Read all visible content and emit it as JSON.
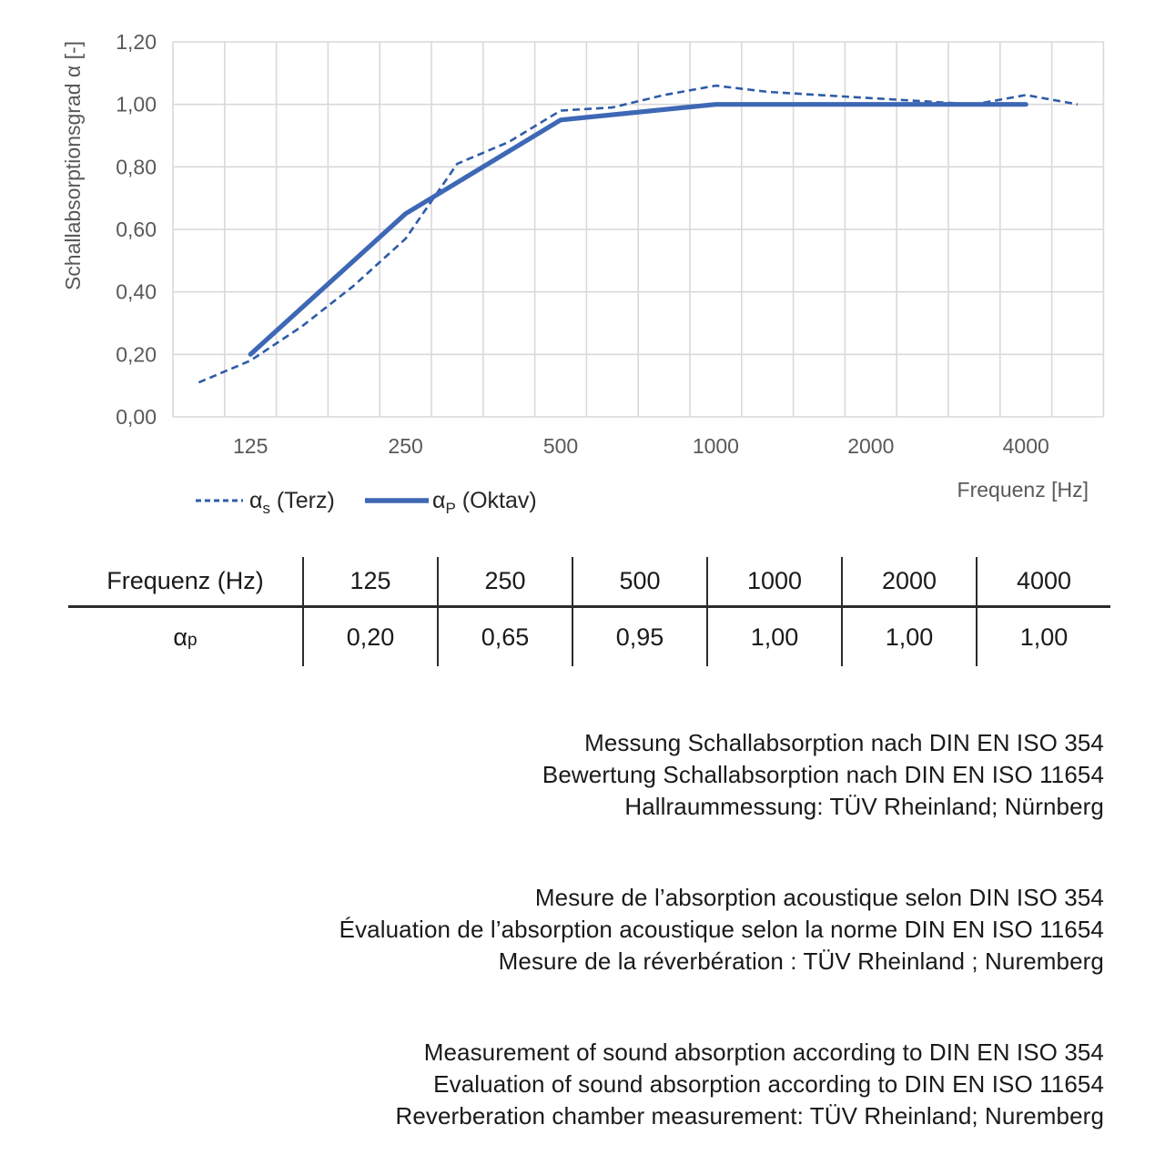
{
  "colors": {
    "grid": "#d9d9d9",
    "axis_text": "#595959",
    "legend_text": "#262626",
    "body_text": "#1a1a1a",
    "series_dashed": "#2f5ba8",
    "series_solid": "#3e68b5",
    "table_line": "#2b2b2b"
  },
  "chart_data": {
    "type": "line",
    "x_scale": "log-third-octave-categories",
    "categories": [
      100,
      125,
      160,
      200,
      250,
      315,
      400,
      500,
      630,
      800,
      1000,
      1250,
      1600,
      2000,
      2500,
      3150,
      4000,
      5000
    ],
    "xlabel": "Frequenz [Hz]",
    "ylabel": "Schallabsorptionsgrad α [-]",
    "ylim": [
      0,
      1.2
    ],
    "ytick_step": 0.2,
    "ytick_labels": [
      "0,00",
      "0,20",
      "0,40",
      "0,60",
      "0,80",
      "1,00",
      "1,20"
    ],
    "xticks": [
      {
        "label": "125",
        "f": 125
      },
      {
        "label": "250",
        "f": 250
      },
      {
        "label": "500",
        "f": 500
      },
      {
        "label": "1000",
        "f": 1000
      },
      {
        "label": "2000",
        "f": 2000
      },
      {
        "label": "4000",
        "f": 4000
      }
    ],
    "grid": true,
    "legend_position": "bottom-left",
    "series": [
      {
        "name": "αs (Terz)",
        "name_parts": {
          "base": "α",
          "sub": "s",
          "rest": " (Terz)"
        },
        "style": "dashed",
        "color": "#2f5ba8",
        "x": [
          100,
          125,
          160,
          200,
          250,
          315,
          400,
          500,
          630,
          800,
          1000,
          1250,
          1600,
          2000,
          2500,
          3150,
          4000,
          5000
        ],
        "values": [
          0.11,
          0.18,
          0.29,
          0.42,
          0.57,
          0.81,
          0.88,
          0.98,
          0.99,
          1.03,
          1.06,
          1.04,
          1.03,
          1.02,
          1.01,
          1.0,
          1.03,
          1.0
        ]
      },
      {
        "name": "αP (Oktav)",
        "name_parts": {
          "base": "α",
          "sub": "P",
          "rest": " (Oktav)"
        },
        "style": "solid",
        "color": "#3e68b5",
        "x": [
          125,
          250,
          500,
          1000,
          2000,
          4000
        ],
        "values": [
          0.2,
          0.65,
          0.95,
          1.0,
          1.0,
          1.0
        ]
      }
    ]
  },
  "table": {
    "header": [
      "Frequenz (Hz)",
      "125",
      "250",
      "500",
      "1000",
      "2000",
      "4000"
    ],
    "row_label": {
      "base": "α",
      "sub": "p"
    },
    "values": [
      "0,20",
      "0,65",
      "0,95",
      "1,00",
      "1,00",
      "1,00"
    ]
  },
  "notes": {
    "de": [
      "Messung Schallabsorption nach DIN EN ISO 354",
      "Bewertung Schallabsorption nach DIN EN ISO 11654",
      "Hallraummessung: TÜV Rheinland; Nürnberg"
    ],
    "fr": [
      "Mesure de l’absorption acoustique selon DIN ISO 354",
      "Évaluation de l’absorption acoustique selon la norme DIN EN ISO 11654",
      "Mesure de la réverbération : TÜV Rheinland ; Nuremberg"
    ],
    "en": [
      "Measurement of sound absorption according to DIN EN ISO 354",
      "Evaluation of sound absorption according to DIN EN ISO 11654",
      "Reverberation chamber measurement: TÜV Rheinland; Nuremberg"
    ]
  }
}
